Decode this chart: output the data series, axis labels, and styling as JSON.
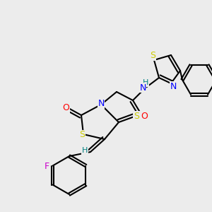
{
  "bg_color": "#ececec",
  "atom_colors": {
    "C": "#000000",
    "N": "#0000ff",
    "O": "#ff0000",
    "S": "#cccc00",
    "F": "#cc00cc",
    "H": "#008080"
  },
  "figsize": [
    3.0,
    3.0
  ],
  "dpi": 100
}
